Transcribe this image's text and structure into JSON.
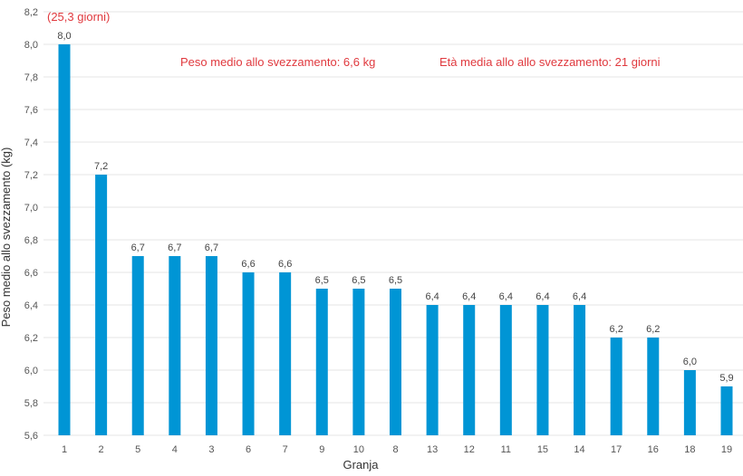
{
  "chart_data": {
    "type": "bar",
    "xlabel": "Granja",
    "ylabel": "Peso medio allo svezzamento (kg)",
    "categories": [
      "1",
      "2",
      "5",
      "4",
      "3",
      "6",
      "7",
      "9",
      "10",
      "8",
      "13",
      "12",
      "11",
      "15",
      "14",
      "17",
      "16",
      "18",
      "19"
    ],
    "values": [
      8.0,
      7.2,
      6.7,
      6.7,
      6.7,
      6.6,
      6.6,
      6.5,
      6.5,
      6.5,
      6.4,
      6.4,
      6.4,
      6.4,
      6.4,
      6.2,
      6.2,
      6.0,
      5.9
    ],
    "data_labels": [
      "8,0",
      "7,2",
      "6,7",
      "6,7",
      "6,7",
      "6,6",
      "6,6",
      "6,5",
      "6,5",
      "6,5",
      "6,4",
      "6,4",
      "6,4",
      "6,4",
      "6,4",
      "6,2",
      "6,2",
      "6,0",
      "5,9"
    ],
    "ylim": [
      5.6,
      8.2
    ],
    "yticks": [
      "5,6",
      "5,8",
      "6,0",
      "6,2",
      "6,4",
      "6,6",
      "6,8",
      "7,0",
      "7,2",
      "7,4",
      "7,6",
      "7,8",
      "8,0",
      "8,2"
    ],
    "grid": true,
    "legend": "none",
    "bar_color": "#0095d5",
    "annotations": {
      "first_bar_note": "(25,3 giorni)",
      "avg_weight": "Peso medio allo svezzamento: 6,6 kg",
      "avg_age": "Età media allo allo svezzamento: 21 giorni"
    },
    "annotation_color": "#e0393e"
  }
}
